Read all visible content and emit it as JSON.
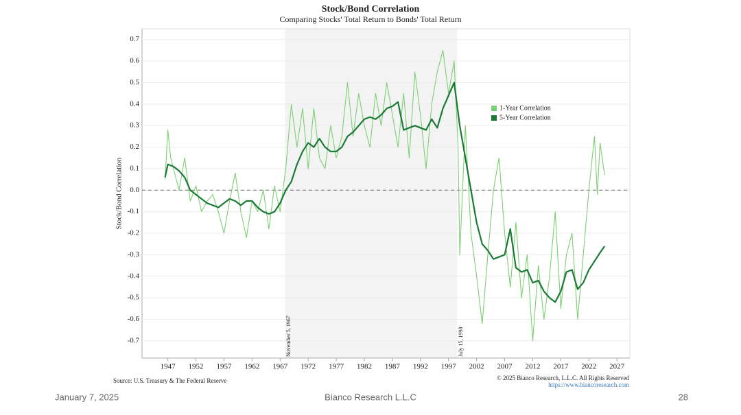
{
  "chart_data": {
    "type": "line",
    "title": "Stock/Bond Correlation",
    "subtitle": "Comparing Stocks' Total Return to Bonds' Total Return",
    "y_label": "Stock/Bond Correlation",
    "xlim": [
      1942.4,
      2029.3
    ],
    "xticks": [
      1947,
      1952,
      1957,
      1962,
      1967,
      1972,
      1977,
      1982,
      1987,
      1992,
      1997,
      2002,
      2007,
      2012,
      2017,
      2022,
      2027
    ],
    "ylim": [
      -0.78,
      0.75
    ],
    "yticks": [
      -0.7,
      -0.6,
      -0.5,
      -0.4,
      -0.3,
      -0.2,
      -0.1,
      {
        "value": 0,
        "label": "0.0"
      },
      0.1,
      0.2,
      0.3,
      0.4,
      0.5,
      0.6,
      0.7
    ],
    "grid": true,
    "hline": 0,
    "shaded": {
      "start": 1967.85,
      "end": 1998.54,
      "color": "#f3f3f3"
    },
    "annotations": [
      {
        "x": 1967.85,
        "text": "November 5, 1967"
      },
      {
        "x": 1998.54,
        "text": "July 15, 1998"
      }
    ],
    "series": [
      {
        "name": "1-Year Correlation",
        "color": "#7ccf72",
        "x": [
          1946.5,
          1947,
          1947.5,
          1948,
          1949,
          1950,
          1951,
          1952,
          1953,
          1954,
          1955,
          1956,
          1957,
          1958,
          1959,
          1960,
          1961,
          1962,
          1963,
          1964,
          1965,
          1966,
          1967,
          1968,
          1969,
          1970,
          1971,
          1972,
          1973,
          1974,
          1975,
          1976,
          1977,
          1978,
          1979,
          1980,
          1981,
          1982,
          1983,
          1984,
          1985,
          1986,
          1987,
          1988,
          1989,
          1990,
          1991,
          1992,
          1993,
          1994,
          1995,
          1996,
          1997,
          1998,
          1998.7,
          1999,
          2000,
          2001,
          2002,
          2003,
          2004,
          2005,
          2006,
          2007,
          2008,
          2009,
          2010,
          2011,
          2012,
          2013,
          2014,
          2015,
          2016,
          2017,
          2018,
          2019,
          2020,
          2021,
          2022,
          2023,
          2023.5,
          2024,
          2024.8
        ],
        "values": [
          0.05,
          0.28,
          0.15,
          0.1,
          0.0,
          0.15,
          -0.05,
          0.02,
          -0.1,
          -0.05,
          -0.02,
          -0.1,
          -0.2,
          -0.05,
          0.08,
          -0.1,
          -0.22,
          -0.05,
          -0.1,
          0.0,
          -0.18,
          0.02,
          -0.1,
          0.1,
          0.4,
          0.2,
          0.38,
          0.1,
          0.38,
          0.15,
          0.1,
          0.3,
          0.15,
          0.25,
          0.5,
          0.25,
          0.45,
          0.3,
          0.2,
          0.45,
          0.3,
          0.5,
          0.35,
          0.2,
          0.45,
          0.15,
          0.55,
          0.35,
          0.1,
          0.4,
          0.55,
          0.65,
          0.45,
          0.6,
          0.2,
          -0.3,
          0.3,
          -0.2,
          -0.4,
          -0.62,
          -0.3,
          0.0,
          0.15,
          -0.2,
          -0.45,
          -0.15,
          -0.5,
          -0.3,
          -0.7,
          -0.35,
          -0.6,
          -0.4,
          -0.1,
          -0.55,
          -0.3,
          -0.2,
          -0.6,
          -0.3,
          0.0,
          0.25,
          -0.02,
          0.22,
          0.07
        ]
      },
      {
        "name": "5-Year Correlation",
        "color": "#1a7a35",
        "x": [
          1946.5,
          1947,
          1948,
          1949,
          1950,
          1951,
          1952,
          1953,
          1954,
          1955,
          1956,
          1957,
          1958,
          1959,
          1960,
          1961,
          1962,
          1963,
          1964,
          1965,
          1966,
          1967,
          1968,
          1969,
          1970,
          1971,
          1972,
          1973,
          1974,
          1975,
          1976,
          1977,
          1978,
          1979,
          1980,
          1981,
          1982,
          1983,
          1984,
          1985,
          1986,
          1987,
          1988,
          1989,
          1990,
          1991,
          1992,
          1993,
          1994,
          1995,
          1996,
          1997,
          1998,
          1999,
          2000,
          2001,
          2002,
          2003,
          2004,
          2005,
          2006,
          2007,
          2008,
          2009,
          2010,
          2011,
          2012,
          2013,
          2014,
          2015,
          2016,
          2017,
          2018,
          2019,
          2020,
          2021,
          2022,
          2023,
          2024,
          2024.8
        ],
        "values": [
          0.06,
          0.12,
          0.11,
          0.09,
          0.06,
          0.0,
          -0.02,
          -0.04,
          -0.06,
          -0.07,
          -0.08,
          -0.06,
          -0.04,
          -0.05,
          -0.07,
          -0.05,
          -0.05,
          -0.08,
          -0.1,
          -0.11,
          -0.1,
          -0.06,
          0.0,
          0.04,
          0.12,
          0.18,
          0.22,
          0.2,
          0.24,
          0.2,
          0.18,
          0.18,
          0.2,
          0.25,
          0.27,
          0.3,
          0.33,
          0.34,
          0.33,
          0.35,
          0.38,
          0.39,
          0.41,
          0.28,
          0.29,
          0.3,
          0.29,
          0.28,
          0.33,
          0.29,
          0.38,
          0.44,
          0.5,
          0.3,
          0.15,
          0.0,
          -0.15,
          -0.25,
          -0.28,
          -0.32,
          -0.31,
          -0.3,
          -0.18,
          -0.36,
          -0.38,
          -0.37,
          -0.43,
          -0.42,
          -0.47,
          -0.5,
          -0.52,
          -0.47,
          -0.38,
          -0.37,
          -0.46,
          -0.43,
          -0.37,
          -0.33,
          -0.29,
          -0.26
        ]
      }
    ]
  },
  "footer": {
    "source": "Source: U.S. Treasury & The Federal Reserve",
    "copyright": "© 2025 Bianco Research, L.L.C. All Rights Reserved",
    "url": "https://www.biancoresearch.com",
    "date": "January 7, 2025",
    "company": "Bianco Research L.L.C",
    "page": "28"
  }
}
